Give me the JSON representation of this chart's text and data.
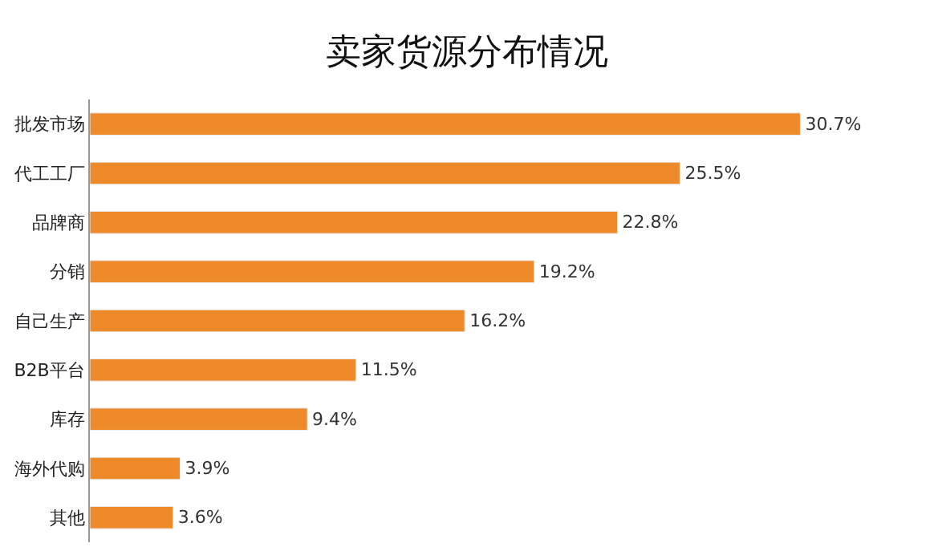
{
  "chart_data": {
    "type": "bar",
    "orientation": "horizontal",
    "title": "卖家货源分布情况",
    "categories": [
      "批发市场",
      "代工工厂",
      "品牌商",
      "分销",
      "自己生产",
      "B2B平台",
      "库存",
      "海外代购",
      "其他"
    ],
    "values": [
      30.7,
      25.5,
      22.8,
      19.2,
      16.2,
      11.5,
      9.4,
      3.9,
      3.6
    ],
    "value_labels": [
      "30.7%",
      "25.5%",
      "22.8%",
      "19.2%",
      "16.2%",
      "11.5%",
      "9.4%",
      "3.9%",
      "3.6%"
    ],
    "color": "#ee8a2a",
    "tick_labels": "y"
  }
}
